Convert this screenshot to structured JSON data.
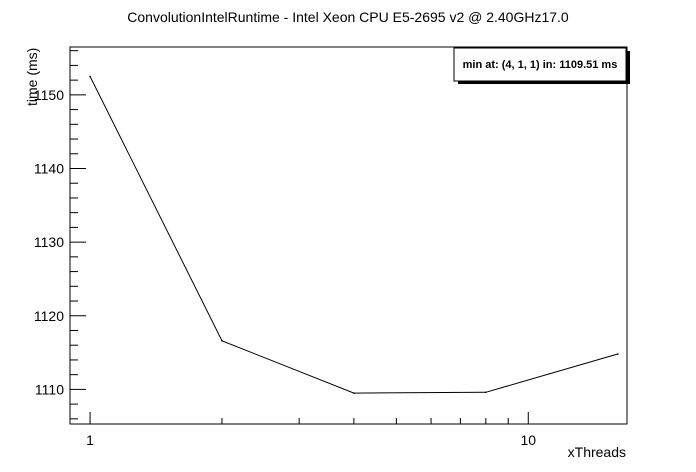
{
  "chart_data": {
    "type": "line",
    "title": "ConvolutionIntelRuntime - Intel Xeon CPU E5-2695 v2 @ 2.40GHz17.0",
    "xlabel": "xThreads",
    "ylabel": "time (ms)",
    "x_scale": "log",
    "xlim": [
      0.9,
      16.8
    ],
    "ylim": [
      1105.3,
      1156.5
    ],
    "x_tick_labels": [
      {
        "value": 1,
        "label": "1"
      },
      {
        "value": 10,
        "label": "10"
      }
    ],
    "y_tick_labels": [
      {
        "value": 1110,
        "label": "1110"
      },
      {
        "value": 1120,
        "label": "1120"
      },
      {
        "value": 1130,
        "label": "1130"
      },
      {
        "value": 1140,
        "label": "1140"
      },
      {
        "value": 1150,
        "label": "1150"
      }
    ],
    "series": [
      {
        "x": [
          1,
          2,
          4,
          8,
          16
        ],
        "y": [
          1152.5,
          1116.6,
          1109.5,
          1109.6,
          1114.8
        ],
        "color": "#000000"
      }
    ],
    "annotation": "min at: (4, 1, 1) in: 1109.51 ms",
    "grid": false,
    "legend": "none"
  }
}
